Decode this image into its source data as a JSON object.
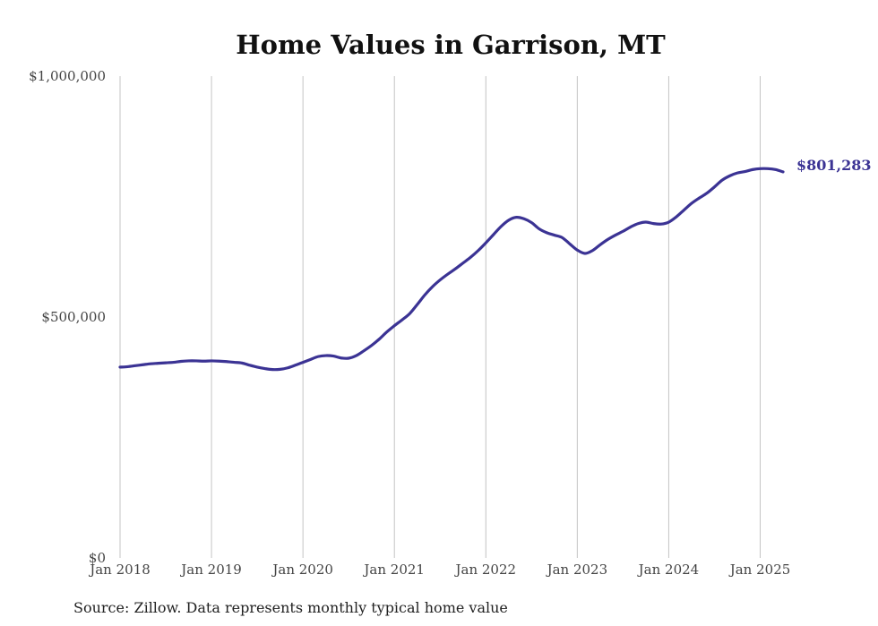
{
  "chart_data": {
    "type": "line",
    "title": "Home Values in Garrison, MT",
    "source": "Source: Zillow. Data represents monthly typical home value",
    "ylim": [
      0,
      1000000
    ],
    "yticks": [
      {
        "value": 0,
        "label": "$0"
      },
      {
        "value": 500000,
        "label": "$500,000"
      },
      {
        "value": 1000000,
        "label": "$1,000,000"
      }
    ],
    "xlim": [
      "2018-01",
      "2025-04"
    ],
    "xticks": [
      {
        "value": "2018-01",
        "label": "Jan 2018"
      },
      {
        "value": "2019-01",
        "label": "Jan 2019"
      },
      {
        "value": "2020-01",
        "label": "Jan 2020"
      },
      {
        "value": "2021-01",
        "label": "Jan 2021"
      },
      {
        "value": "2022-01",
        "label": "Jan 2022"
      },
      {
        "value": "2023-01",
        "label": "Jan 2023"
      },
      {
        "value": "2024-01",
        "label": "Jan 2024"
      },
      {
        "value": "2025-01",
        "label": "Jan 2025"
      }
    ],
    "grid": {
      "vertical": true,
      "horizontal": false
    },
    "line_color": "#3b3394",
    "end_label": "$801,283",
    "series": [
      {
        "x": [
          "2018-01",
          "2018-02",
          "2018-03",
          "2018-04",
          "2018-05",
          "2018-06",
          "2018-07",
          "2018-08",
          "2018-09",
          "2018-10",
          "2018-11",
          "2018-12",
          "2019-01",
          "2019-02",
          "2019-03",
          "2019-04",
          "2019-05",
          "2019-06",
          "2019-07",
          "2019-08",
          "2019-09",
          "2019-10",
          "2019-11",
          "2019-12",
          "2020-01",
          "2020-02",
          "2020-03",
          "2020-04",
          "2020-05",
          "2020-06",
          "2020-07",
          "2020-08",
          "2020-09",
          "2020-10",
          "2020-11",
          "2020-12",
          "2021-01",
          "2021-02",
          "2021-03",
          "2021-04",
          "2021-05",
          "2021-06",
          "2021-07",
          "2021-08",
          "2021-09",
          "2021-10",
          "2021-11",
          "2021-12",
          "2022-01",
          "2022-02",
          "2022-03",
          "2022-04",
          "2022-05",
          "2022-06",
          "2022-07",
          "2022-08",
          "2022-09",
          "2022-10",
          "2022-11",
          "2022-12",
          "2023-01",
          "2023-02",
          "2023-03",
          "2023-04",
          "2023-05",
          "2023-06",
          "2023-07",
          "2023-08",
          "2023-09",
          "2023-10",
          "2023-11",
          "2023-12",
          "2024-01",
          "2024-02",
          "2024-03",
          "2024-04",
          "2024-05",
          "2024-06",
          "2024-07",
          "2024-08",
          "2024-09",
          "2024-10",
          "2024-11",
          "2024-12",
          "2025-01",
          "2025-02",
          "2025-03",
          "2025-04"
        ],
        "y": [
          396000,
          397000,
          399000,
          401000,
          403000,
          404000,
          405000,
          406000,
          408000,
          409000,
          409000,
          408500,
          409000,
          408500,
          407500,
          406000,
          404500,
          400000,
          396000,
          393000,
          391000,
          391500,
          394500,
          400000,
          406000,
          412000,
          418000,
          420000,
          419000,
          415000,
          414500,
          420000,
          430000,
          441000,
          454000,
          469000,
          482000,
          494000,
          507000,
          526000,
          546000,
          563000,
          577000,
          589000,
          600000,
          612000,
          624000,
          638000,
          654000,
          671000,
          688000,
          701000,
          707000,
          704000,
          696000,
          683000,
          675000,
          670000,
          665000,
          652000,
          639000,
          632000,
          638000,
          650000,
          661000,
          670000,
          678000,
          687000,
          694000,
          697000,
          694000,
          693000,
          697000,
          708000,
          722000,
          736000,
          747000,
          757000,
          770000,
          784000,
          793000,
          799000,
          802000,
          806000,
          808000,
          808000,
          806000,
          801283
        ]
      }
    ]
  }
}
